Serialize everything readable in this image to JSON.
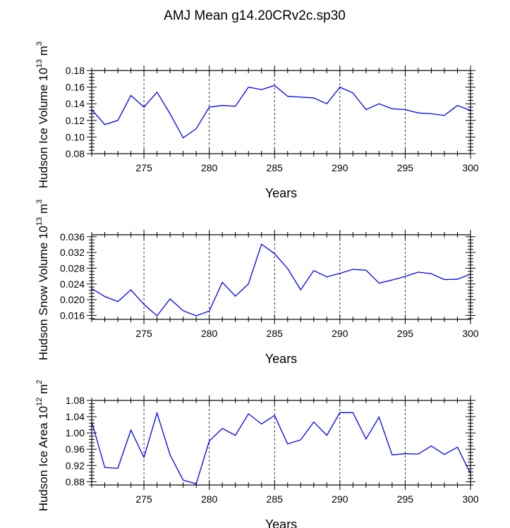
{
  "title": "AMJ Mean g14.20CRv2c.sp30",
  "colors": {
    "line": "#0000ff",
    "axis": "#000000",
    "grid": "#000000"
  },
  "chart_data": [
    {
      "type": "line",
      "title": "AMJ Mean g14.20CRv2c.sp30",
      "ylabel": "Hudson Ice Volume 10^13 m^3",
      "ylabel_parts": {
        "main": "Hudson Ice Volume 10",
        "exp1": "13",
        "mid": " m",
        "exp2": "3"
      },
      "xlabel": "Years",
      "xlim": [
        271,
        300
      ],
      "ylim": [
        0.08,
        0.18
      ],
      "xticks": [
        275,
        280,
        285,
        290,
        295,
        300
      ],
      "yticks": [
        "0.08",
        "0.10",
        "0.12",
        "0.14",
        "0.16",
        "0.18"
      ],
      "grid": "vertical dashed at major x ticks",
      "x": [
        271,
        272,
        273,
        274,
        275,
        276,
        277,
        278,
        279,
        280,
        281,
        282,
        283,
        284,
        285,
        286,
        287,
        288,
        289,
        290,
        291,
        292,
        293,
        294,
        295,
        296,
        297,
        298,
        299,
        300
      ],
      "series": [
        {
          "values": [
            0.133,
            0.115,
            0.12,
            0.15,
            0.136,
            0.154,
            0.128,
            0.099,
            0.11,
            0.136,
            0.138,
            0.137,
            0.16,
            0.157,
            0.162,
            0.149,
            0.148,
            0.147,
            0.14,
            0.16,
            0.153,
            0.133,
            0.14,
            0.134,
            0.133,
            0.129,
            0.128,
            0.126,
            0.138,
            0.132
          ]
        }
      ]
    },
    {
      "type": "line",
      "ylabel": "Hudson Snow Volume 10^13 m^3",
      "ylabel_parts": {
        "main": "Hudson Snow Volume 10",
        "exp1": "13",
        "mid": " m",
        "exp2": "3"
      },
      "xlabel": "Years",
      "xlim": [
        271,
        300
      ],
      "ylim": [
        0.015,
        0.0365
      ],
      "xticks": [
        275,
        280,
        285,
        290,
        295,
        300
      ],
      "yticks": [
        "0.016",
        "0.020",
        "0.024",
        "0.028",
        "0.032",
        "0.036"
      ],
      "grid": "vertical dashed at major x ticks",
      "x": [
        271,
        272,
        273,
        274,
        275,
        276,
        277,
        278,
        279,
        280,
        281,
        282,
        283,
        284,
        285,
        286,
        287,
        288,
        289,
        290,
        291,
        292,
        293,
        294,
        295,
        296,
        297,
        298,
        299,
        300
      ],
      "series": [
        {
          "values": [
            0.0228,
            0.0208,
            0.0195,
            0.0225,
            0.0188,
            0.0159,
            0.0202,
            0.0172,
            0.0159,
            0.0171,
            0.0244,
            0.0209,
            0.024,
            0.0341,
            0.0317,
            0.0279,
            0.0225,
            0.0274,
            0.0258,
            0.0267,
            0.0277,
            0.0275,
            0.0242,
            0.025,
            0.0259,
            0.027,
            0.0266,
            0.0251,
            0.0252,
            0.0265
          ]
        }
      ]
    },
    {
      "type": "line",
      "ylabel": "Hudson Ice Area 10^12 m^2",
      "ylabel_parts": {
        "main": "Hudson Ice Area 10",
        "exp1": "12",
        "mid": " m",
        "exp2": "2"
      },
      "xlabel": "Years",
      "xlim": [
        271,
        300
      ],
      "ylim": [
        0.872,
        1.08
      ],
      "xticks": [
        275,
        280,
        285,
        290,
        295,
        300
      ],
      "yticks": [
        "0.88",
        "0.92",
        "0.96",
        "1.00",
        "1.04",
        "1.08"
      ],
      "grid": "vertical dashed at major x ticks",
      "x": [
        271,
        272,
        273,
        274,
        275,
        276,
        277,
        278,
        279,
        280,
        281,
        282,
        283,
        284,
        285,
        286,
        287,
        288,
        289,
        290,
        291,
        292,
        293,
        294,
        295,
        296,
        297,
        298,
        299,
        300
      ],
      "series": [
        {
          "values": [
            1.028,
            0.915,
            0.913,
            1.007,
            0.94,
            1.049,
            0.946,
            0.884,
            0.875,
            0.98,
            1.011,
            0.994,
            1.047,
            1.022,
            1.043,
            0.973,
            0.983,
            1.027,
            0.994,
            1.05,
            1.05,
            0.985,
            1.039,
            0.946,
            0.949,
            0.948,
            0.968,
            0.947,
            0.965,
            0.9
          ]
        }
      ]
    }
  ]
}
